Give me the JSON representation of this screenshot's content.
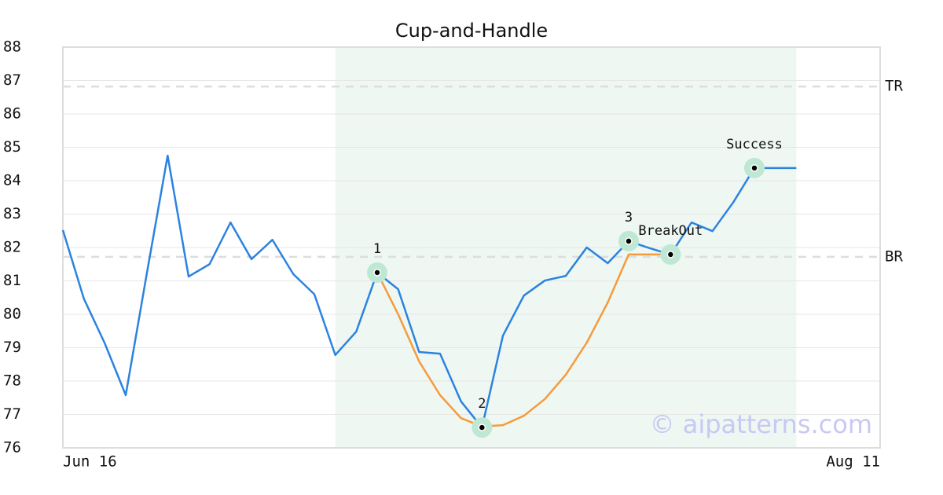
{
  "chart_data": {
    "type": "line",
    "title": "Cup-and-Handle",
    "categories": [
      "Jun 16",
      null,
      null,
      null,
      null,
      null,
      null,
      null,
      null,
      null,
      null,
      null,
      null,
      null,
      null,
      null,
      null,
      null,
      null,
      null,
      null,
      null,
      null,
      null,
      null,
      null,
      null,
      null,
      null,
      null,
      null,
      null,
      null,
      null,
      null,
      null,
      null,
      null,
      null,
      "Aug 11"
    ],
    "series": [
      {
        "color": "#2b83e0",
        "values": [
          82.52,
          80.47,
          79.13,
          77.58,
          81.2,
          84.75,
          81.13,
          81.5,
          82.75,
          81.65,
          82.23,
          81.2,
          80.6,
          78.78,
          79.48,
          81.25,
          80.75,
          78.87,
          78.82,
          77.39,
          76.61,
          79.36,
          80.56,
          81.01,
          81.15,
          82.0,
          81.53,
          82.19,
          81.98,
          81.79,
          82.75,
          82.49,
          83.36,
          84.38,
          84.38,
          84.38,
          null,
          null,
          null,
          null
        ]
      },
      {
        "color": "#f59b3c",
        "values": [
          null,
          null,
          null,
          null,
          null,
          null,
          null,
          null,
          null,
          null,
          null,
          null,
          null,
          null,
          null,
          81.25,
          80.0,
          78.59,
          77.58,
          76.89,
          76.64,
          76.68,
          76.96,
          77.46,
          78.19,
          79.15,
          80.35,
          81.79,
          81.79,
          81.79,
          null,
          null,
          null,
          null,
          null,
          null,
          null,
          null,
          null,
          null
        ]
      }
    ],
    "ylim": [
      76,
      88
    ],
    "yticks": [
      76,
      77,
      78,
      79,
      80,
      81,
      82,
      83,
      84,
      85,
      86,
      87,
      88
    ],
    "grid": true,
    "highlight_x": [
      13,
      35
    ],
    "levels": [
      {
        "label": "TR",
        "value": 86.82
      },
      {
        "label": "BR",
        "value": 81.72
      }
    ],
    "annotations": [
      {
        "label": "1",
        "x": 15,
        "y": 81.25
      },
      {
        "label": "2",
        "x": 20,
        "y": 76.61
      },
      {
        "label": "3",
        "x": 27,
        "y": 82.19
      },
      {
        "label": "BreakOut",
        "x": 29,
        "y": 81.79
      },
      {
        "label": "Success",
        "x": 33,
        "y": 84.38
      }
    ],
    "watermark": "© aipatterns.com"
  }
}
